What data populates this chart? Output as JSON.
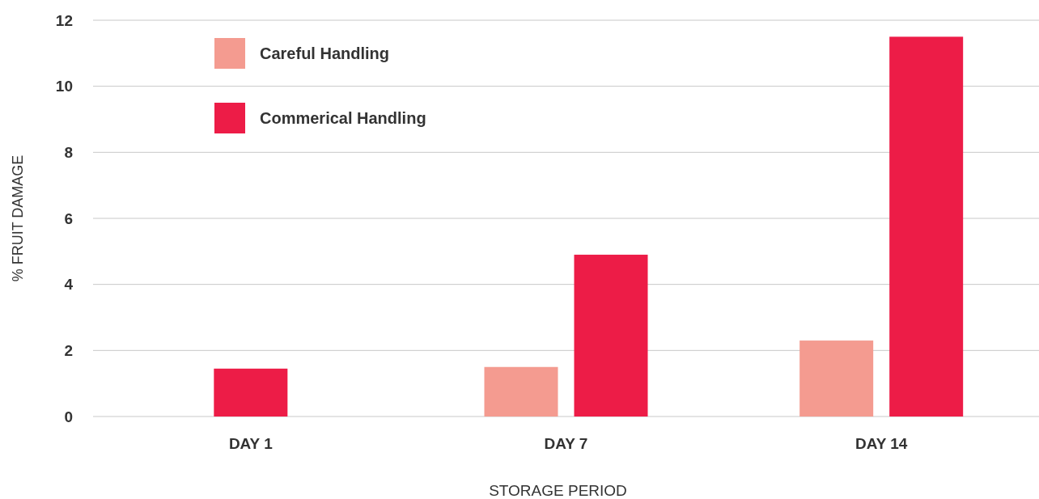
{
  "chart_data": {
    "type": "bar",
    "xlabel": "STORAGE PERIOD",
    "ylabel": "% FRUIT DAMAGE",
    "categories": [
      "DAY 1",
      "DAY 7",
      "DAY 14"
    ],
    "series": [
      {
        "name": "Careful Handling",
        "color": "#f49b90",
        "values": [
          null,
          1.5,
          2.3
        ]
      },
      {
        "name": "Commerical Handling",
        "color": "#ed1c47",
        "values": [
          1.45,
          4.9,
          11.5
        ]
      }
    ],
    "ylim": [
      0,
      12
    ],
    "yticks": [
      0,
      2,
      4,
      6,
      8,
      10,
      12
    ],
    "grid": "y",
    "legend": "top left"
  }
}
